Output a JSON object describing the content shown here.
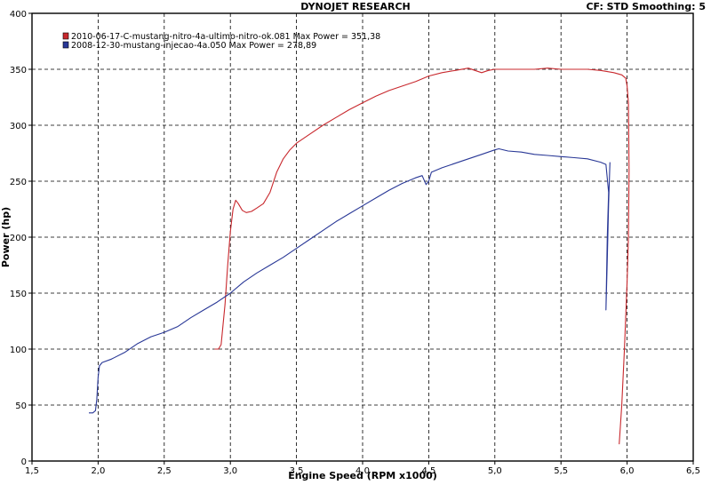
{
  "chart_data": {
    "type": "line",
    "title": "DYNOJET RESEARCH",
    "header_right": "CF: STD  Smoothing: 5",
    "xlabel": "Engine Speed (RPM x1000)",
    "ylabel": "Power (hp)",
    "xlim": [
      1.5,
      6.5
    ],
    "ylim": [
      0,
      400
    ],
    "xticks": [
      "1,5",
      "2,0",
      "2,5",
      "3,0",
      "3,5",
      "4,0",
      "4,5",
      "5,0",
      "5,5",
      "6,0",
      "6,5"
    ],
    "yticks": [
      "0",
      "50",
      "100",
      "150",
      "200",
      "250",
      "300",
      "350",
      "400"
    ],
    "grid": true,
    "legend_position": "top-left",
    "series": [
      {
        "name": "2010-06-17-C-mustang-nitro-4a-ultimo-nitro-ok.081 Max Power = 351,38",
        "color": "#c8282d",
        "points": [
          [
            2.88,
            100
          ],
          [
            2.91,
            100
          ],
          [
            2.93,
            104
          ],
          [
            2.96,
            140
          ],
          [
            2.98,
            175
          ],
          [
            3.0,
            205
          ],
          [
            3.02,
            225
          ],
          [
            3.04,
            233
          ],
          [
            3.06,
            230
          ],
          [
            3.09,
            224
          ],
          [
            3.12,
            222
          ],
          [
            3.16,
            223
          ],
          [
            3.2,
            226
          ],
          [
            3.25,
            230
          ],
          [
            3.3,
            240
          ],
          [
            3.35,
            258
          ],
          [
            3.4,
            270
          ],
          [
            3.45,
            278
          ],
          [
            3.5,
            284
          ],
          [
            3.6,
            292
          ],
          [
            3.7,
            300
          ],
          [
            3.8,
            307
          ],
          [
            3.9,
            314
          ],
          [
            4.0,
            320
          ],
          [
            4.1,
            326
          ],
          [
            4.2,
            331
          ],
          [
            4.3,
            335
          ],
          [
            4.4,
            339
          ],
          [
            4.5,
            344
          ],
          [
            4.6,
            347
          ],
          [
            4.7,
            349
          ],
          [
            4.8,
            351
          ],
          [
            4.85,
            349
          ],
          [
            4.9,
            347
          ],
          [
            4.95,
            349
          ],
          [
            5.0,
            350
          ],
          [
            5.1,
            350
          ],
          [
            5.2,
            350
          ],
          [
            5.3,
            350
          ],
          [
            5.4,
            351
          ],
          [
            5.5,
            350
          ],
          [
            5.6,
            350
          ],
          [
            5.7,
            350
          ],
          [
            5.8,
            349
          ],
          [
            5.9,
            347
          ],
          [
            5.96,
            345
          ],
          [
            5.99,
            342
          ],
          [
            6.0,
            335
          ],
          [
            6.01,
            320
          ],
          [
            6.015,
            260
          ],
          [
            6.01,
            200
          ],
          [
            6.0,
            160
          ],
          [
            5.98,
            100
          ],
          [
            5.96,
            50
          ],
          [
            5.94,
            15
          ]
        ]
      },
      {
        "name": "2008-12-30-mustang-injecao-4a.050 Max Power = 278,89",
        "color": "#283796",
        "points": [
          [
            1.93,
            43
          ],
          [
            1.96,
            43
          ],
          [
            1.98,
            45
          ],
          [
            1.99,
            55
          ],
          [
            2.0,
            75
          ],
          [
            2.01,
            85
          ],
          [
            2.03,
            88
          ],
          [
            2.1,
            91
          ],
          [
            2.2,
            97
          ],
          [
            2.3,
            105
          ],
          [
            2.4,
            111
          ],
          [
            2.5,
            115
          ],
          [
            2.6,
            120
          ],
          [
            2.7,
            128
          ],
          [
            2.8,
            135
          ],
          [
            2.9,
            142
          ],
          [
            3.0,
            150
          ],
          [
            3.1,
            160
          ],
          [
            3.2,
            168
          ],
          [
            3.3,
            175
          ],
          [
            3.4,
            182
          ],
          [
            3.5,
            190
          ],
          [
            3.6,
            198
          ],
          [
            3.7,
            206
          ],
          [
            3.8,
            214
          ],
          [
            3.9,
            221
          ],
          [
            4.0,
            228
          ],
          [
            4.1,
            235
          ],
          [
            4.2,
            242
          ],
          [
            4.3,
            248
          ],
          [
            4.4,
            253
          ],
          [
            4.45,
            255
          ],
          [
            4.48,
            247
          ],
          [
            4.5,
            250
          ],
          [
            4.52,
            258
          ],
          [
            4.6,
            262
          ],
          [
            4.7,
            266
          ],
          [
            4.8,
            270
          ],
          [
            4.9,
            274
          ],
          [
            5.0,
            278
          ],
          [
            5.03,
            279
          ],
          [
            5.1,
            277
          ],
          [
            5.2,
            276
          ],
          [
            5.3,
            274
          ],
          [
            5.4,
            273
          ],
          [
            5.5,
            272
          ],
          [
            5.6,
            271
          ],
          [
            5.7,
            270
          ],
          [
            5.8,
            267
          ],
          [
            5.84,
            265
          ],
          [
            5.86,
            240
          ],
          [
            5.85,
            200
          ],
          [
            5.84,
            135
          ],
          [
            5.85,
            180
          ],
          [
            5.86,
            230
          ],
          [
            5.87,
            267
          ]
        ]
      }
    ]
  }
}
